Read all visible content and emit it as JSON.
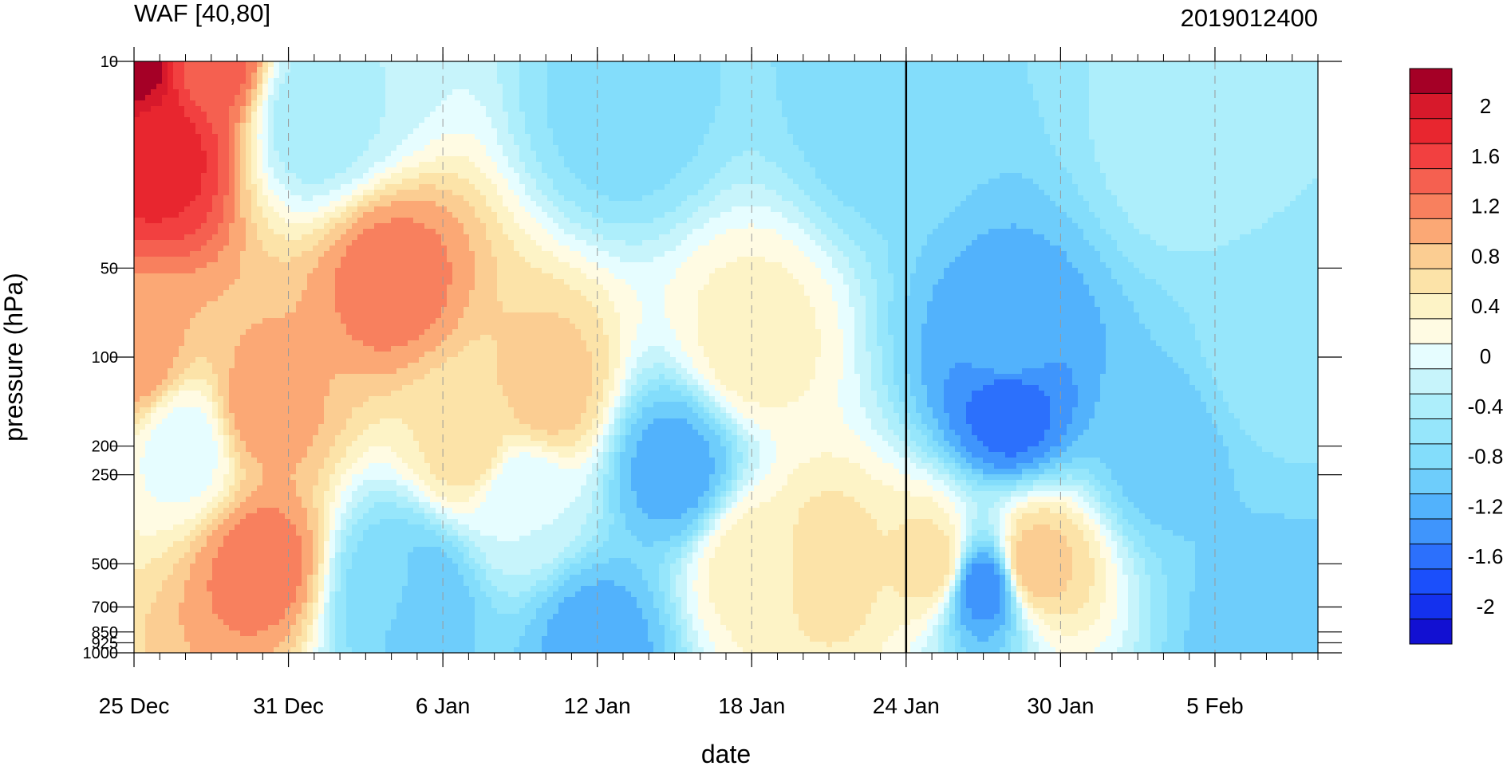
{
  "chart_data": {
    "type": "heatmap",
    "subtype": "filled-contour time-pressure cross-section",
    "title": "WAF [40,80]",
    "right_title": "2019012400",
    "xlabel": "date",
    "ylabel": "pressure (hPa)",
    "y_scale": "log",
    "y_range_hpa": [
      1000,
      10
    ],
    "x_range": [
      "2018-12-25",
      "2019-02-09"
    ],
    "x_ticks": [
      {
        "date": "2018-12-25",
        "label": "25 Dec"
      },
      {
        "date": "2018-12-31",
        "label": "31 Dec"
      },
      {
        "date": "2019-01-06",
        "label": "6 Jan"
      },
      {
        "date": "2019-01-12",
        "label": "12 Jan"
      },
      {
        "date": "2019-01-18",
        "label": "18 Jan"
      },
      {
        "date": "2019-01-24",
        "label": "24 Jan"
      },
      {
        "date": "2019-01-30",
        "label": "30 Jan"
      },
      {
        "date": "2019-02-05",
        "label": "5 Feb"
      }
    ],
    "y_ticks": [
      {
        "value": 10,
        "label": "10"
      },
      {
        "value": 50,
        "label": "50"
      },
      {
        "value": 100,
        "label": "100"
      },
      {
        "value": 200,
        "label": "200"
      },
      {
        "value": 250,
        "label": "250"
      },
      {
        "value": 500,
        "label": "500"
      },
      {
        "value": 700,
        "label": "700"
      },
      {
        "value": 850,
        "label": "850"
      },
      {
        "value": 925,
        "label": "925"
      },
      {
        "value": 1000,
        "label": "1000"
      }
    ],
    "marker_line_date": "2019-01-24",
    "grid": "dashed vertical lines at date ticks",
    "colorbar": {
      "levels": [
        2.2,
        2.0,
        1.8,
        1.6,
        1.4,
        1.2,
        1.0,
        0.8,
        0.6,
        0.4,
        0.2,
        0,
        -0.2,
        -0.4,
        -0.6,
        -0.8,
        -1.0,
        -1.2,
        -1.4,
        -1.6,
        -1.8,
        -2.0,
        -2.2
      ],
      "colors": [
        "#a50026",
        "#d7192b",
        "#e8262f",
        "#f24040",
        "#f56050",
        "#f8805e",
        "#fba875",
        "#fbcd92",
        "#fce3a8",
        "#fdf3c6",
        "#fffbe3",
        "#e6fdff",
        "#c7f4fb",
        "#adeefb",
        "#96e6fb",
        "#83ddfb",
        "#6ecdfb",
        "#52b2fc",
        "#3f95fc",
        "#2c70fc",
        "#1b4ffb",
        "#1431ee",
        "#1210d2"
      ],
      "labels": [
        {
          "value": 2.0,
          "label": "2"
        },
        {
          "value": 1.6,
          "label": "1.6"
        },
        {
          "value": 1.2,
          "label": "1.2"
        },
        {
          "value": 0.8,
          "label": "0.8"
        },
        {
          "value": 0.4,
          "label": "0.4"
        },
        {
          "value": 0,
          "label": "0"
        },
        {
          "value": -0.4,
          "label": "-0.4"
        },
        {
          "value": -0.8,
          "label": "-0.8"
        },
        {
          "value": -1.2,
          "label": "-1.2"
        },
        {
          "value": -1.6,
          "label": "-1.6"
        },
        {
          "value": -2.0,
          "label": "-2"
        }
      ]
    },
    "features": [
      {
        "date": "2018-12-25",
        "p": 10,
        "value": 2.2
      },
      {
        "date": "2018-12-26",
        "p": 20,
        "value": 1.8
      },
      {
        "date": "2018-12-28",
        "p": 10,
        "value": 1.4
      },
      {
        "date": "2018-12-25",
        "p": 100,
        "value": 1.0
      },
      {
        "date": "2018-12-27",
        "p": 200,
        "value": 0.0
      },
      {
        "date": "2018-12-30",
        "p": 500,
        "value": 1.2
      },
      {
        "date": "2018-12-30",
        "p": 150,
        "value": 1.0
      },
      {
        "date": "2019-01-04",
        "p": 55,
        "value": 1.2
      },
      {
        "date": "2019-01-01",
        "p": 15,
        "value": -0.5
      },
      {
        "date": "2019-01-02",
        "p": 12,
        "value": -0.3
      },
      {
        "date": "2019-01-04",
        "p": 600,
        "value": -0.8
      },
      {
        "date": "2019-01-05",
        "p": 650,
        "value": -1.1
      },
      {
        "date": "2019-01-10",
        "p": 130,
        "value": 0.8
      },
      {
        "date": "2019-01-07",
        "p": 200,
        "value": 0.6
      },
      {
        "date": "2019-01-09",
        "p": 300,
        "value": -0.1
      },
      {
        "date": "2019-01-13",
        "p": 15,
        "value": -0.8
      },
      {
        "date": "2019-01-12",
        "p": 930,
        "value": -1.2
      },
      {
        "date": "2019-01-15",
        "p": 240,
        "value": -1.2
      },
      {
        "date": "2019-01-18",
        "p": 90,
        "value": 0.4
      },
      {
        "date": "2019-01-18",
        "p": 500,
        "value": 0.4
      },
      {
        "date": "2019-01-21",
        "p": 500,
        "value": 0.6
      },
      {
        "date": "2019-01-23",
        "p": 15,
        "value": -0.8
      },
      {
        "date": "2019-01-25",
        "p": 500,
        "value": 0.6
      },
      {
        "date": "2019-01-27",
        "p": 600,
        "value": -1.4
      },
      {
        "date": "2019-01-28",
        "p": 150,
        "value": -1.6
      },
      {
        "date": "2019-01-28",
        "p": 90,
        "value": -1.2
      },
      {
        "date": "2019-01-29",
        "p": 500,
        "value": 0.8
      },
      {
        "date": "2019-02-03",
        "p": 200,
        "value": -1.0
      },
      {
        "date": "2019-02-07",
        "p": 100,
        "value": -0.6
      },
      {
        "date": "2019-02-07",
        "p": 850,
        "value": -1.0
      },
      {
        "date": "2019-02-04",
        "p": 20,
        "value": -0.4
      }
    ]
  }
}
